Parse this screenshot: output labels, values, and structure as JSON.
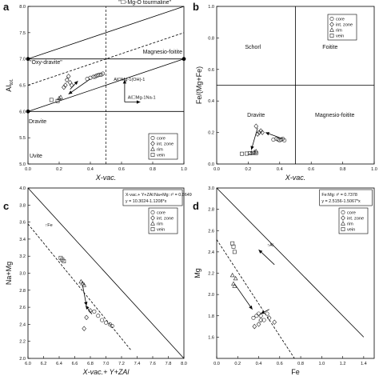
{
  "chart_data": [
    {
      "type": "scatter",
      "panel_label": "a",
      "xlabel": "X-vac.",
      "ylabel": "Al",
      "ylabel_sub": "tot.",
      "xlim": [
        0.0,
        1.0
      ],
      "ylim": [
        5.0,
        8.0
      ],
      "xticks": [
        "0.0",
        "0.2",
        "0.4",
        "0.6",
        "0.8",
        "1.0"
      ],
      "yticks": [
        "5.0",
        "5.5",
        "6.0",
        "6.5",
        "7.0",
        "7.5",
        "8.0"
      ],
      "zones": [
        "Dravite",
        "\"Oxy-dravite\"",
        "Magnesio-foitite",
        "Uvite"
      ],
      "top_label": "\"☐-Mg-O tourmaline\"",
      "annotations": [
        "AlOMg-1(OH)-1",
        "Al☐Mg-1Na-1"
      ],
      "legend": [
        "core",
        "int. zone",
        "rim",
        "vein"
      ],
      "series": [
        {
          "name": "core",
          "marker": "circle",
          "x": [
            0.38,
            0.4,
            0.42,
            0.43,
            0.44,
            0.45,
            0.46,
            0.47,
            0.48
          ],
          "y": [
            6.62,
            6.64,
            6.66,
            6.66,
            6.68,
            6.69,
            6.7,
            6.7,
            6.72
          ]
        },
        {
          "name": "int. zone",
          "marker": "diamond",
          "x": [
            0.23,
            0.24,
            0.25,
            0.26,
            0.27,
            0.28
          ],
          "y": [
            6.46,
            6.5,
            6.6,
            6.67,
            6.55,
            6.5
          ]
        },
        {
          "name": "rim",
          "marker": "triangle",
          "x": [
            0.2,
            0.21
          ],
          "y": [
            6.25,
            6.27
          ]
        },
        {
          "name": "vein",
          "marker": "square",
          "x": [
            0.15,
            0.19
          ],
          "y": [
            6.22,
            6.2
          ]
        }
      ]
    },
    {
      "type": "scatter",
      "panel_label": "b",
      "xlabel": "X-vac.",
      "ylabel": "Fe/(Mg+Fe)",
      "xlim": [
        0.0,
        1.0
      ],
      "ylim": [
        0.0,
        1.0
      ],
      "xticks": [
        "0.0",
        "0.2",
        "0.4",
        "0.6",
        "0.8",
        "1.0"
      ],
      "yticks": [
        "0.0",
        "0.2",
        "0.4",
        "0.6",
        "0.8",
        "1.0"
      ],
      "zones": [
        "Schorl",
        "Foitite",
        "Dravite",
        "Magnesio-foitite"
      ],
      "legend": [
        "core",
        "int. zone",
        "rim",
        "vein"
      ],
      "series": [
        {
          "name": "core",
          "marker": "circle",
          "x": [
            0.36,
            0.38,
            0.39,
            0.4,
            0.41,
            0.42,
            0.43
          ],
          "y": [
            0.155,
            0.16,
            0.155,
            0.15,
            0.155,
            0.16,
            0.15
          ]
        },
        {
          "name": "int. zone",
          "marker": "diamond",
          "x": [
            0.25,
            0.26,
            0.27,
            0.28,
            0.29
          ],
          "y": [
            0.24,
            0.19,
            0.2,
            0.21,
            0.2
          ]
        },
        {
          "name": "rim",
          "marker": "triangle",
          "x": [
            0.22,
            0.24,
            0.25
          ],
          "y": [
            0.07,
            0.075,
            0.08
          ]
        },
        {
          "name": "vein",
          "marker": "square",
          "x": [
            0.16,
            0.19,
            0.21,
            0.23,
            0.25
          ],
          "y": [
            0.065,
            0.066,
            0.068,
            0.07,
            0.07
          ]
        }
      ]
    },
    {
      "type": "scatter",
      "panel_label": "c",
      "xlabel": "X-vac.+ Y+ZAl",
      "ylabel": "Na+Mg",
      "xlim": [
        6.0,
        8.0
      ],
      "ylim": [
        2.0,
        4.0
      ],
      "xticks": [
        "6.0",
        "6.2",
        "6.4",
        "6.6",
        "6.8",
        "7.0",
        "7.2",
        "7.4",
        "7.6",
        "7.8",
        "8.0"
      ],
      "yticks": [
        "2.0",
        "2.2",
        "2.4",
        "2.6",
        "2.8",
        "3.0",
        "3.2",
        "3.4",
        "3.6",
        "3.8",
        "4.0"
      ],
      "fit_lines": [
        "X-vac.+ Y+ZAl:Na+Mg:  r² = 0.8649",
        "y = 10.3024-1.1208*x"
      ],
      "annotations": [
        "↑Fe"
      ],
      "legend": [
        "core",
        "int. zone",
        "rim",
        "vein"
      ],
      "series": [
        {
          "name": "core",
          "marker": "circle",
          "x": [
            6.85,
            6.9,
            6.95,
            7.0,
            7.05,
            7.08
          ],
          "y": [
            2.55,
            2.5,
            2.45,
            2.42,
            2.4,
            2.38
          ]
        },
        {
          "name": "int. zone",
          "marker": "diamond",
          "x": [
            6.72,
            6.75,
            6.8
          ],
          "y": [
            2.35,
            2.48,
            2.56
          ]
        },
        {
          "name": "rim",
          "marker": "triangle",
          "x": [
            6.68,
            6.7,
            6.72
          ],
          "y": [
            2.9,
            2.88,
            2.86
          ]
        },
        {
          "name": "vein",
          "marker": "square",
          "x": [
            6.42,
            6.44,
            6.46
          ],
          "y": [
            3.18,
            3.16,
            3.14
          ]
        }
      ]
    },
    {
      "type": "scatter",
      "panel_label": "d",
      "xlabel": "Fe",
      "ylabel": "Mg",
      "xlim": [
        0.0,
        1.5
      ],
      "ylim": [
        1.4,
        3.0
      ],
      "xticks": [
        "0.0",
        "0.2",
        "0.4",
        "0.6",
        "0.8",
        "1.0",
        "1.2",
        "1.4"
      ],
      "yticks": [
        "1.6",
        "1.8",
        "2.0",
        "2.2",
        "2.4",
        "2.6",
        "2.8",
        "3.0"
      ],
      "fit_lines": [
        "Fe:Mg:  r² = 0.7378",
        "y = 2.5156-1.5067*x"
      ],
      "annotations": [
        "↑Al"
      ],
      "legend": [
        "core",
        "int. zone",
        "rim",
        "vein"
      ],
      "series": [
        {
          "name": "core",
          "marker": "circle",
          "x": [
            0.35,
            0.38,
            0.4,
            0.42,
            0.45,
            0.48
          ],
          "y": [
            1.78,
            1.8,
            1.82,
            1.8,
            1.76,
            1.82
          ]
        },
        {
          "name": "int. zone",
          "marker": "diamond",
          "x": [
            0.36,
            0.4,
            0.42,
            0.5,
            0.55
          ],
          "y": [
            1.7,
            1.72,
            1.76,
            1.78,
            1.74
          ]
        },
        {
          "name": "rim",
          "marker": "triangle",
          "x": [
            0.15,
            0.16,
            0.17,
            0.18
          ],
          "y": [
            2.18,
            2.1,
            2.08,
            2.15
          ]
        },
        {
          "name": "vein",
          "marker": "square",
          "x": [
            0.15,
            0.16,
            0.17
          ],
          "y": [
            2.48,
            2.45,
            2.4
          ]
        }
      ]
    }
  ]
}
